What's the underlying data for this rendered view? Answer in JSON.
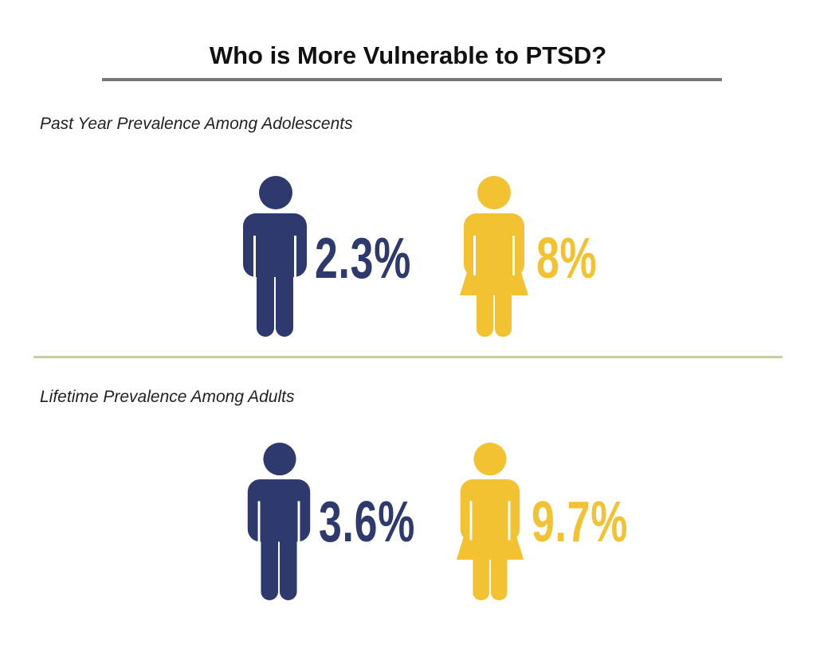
{
  "title": "Who is More Vulnerable to PTSD?",
  "colors": {
    "male": "#2e3a6e",
    "female": "#f2c232",
    "title_rule": "#777777",
    "divider": "#c5cd9c"
  },
  "chart_data": {
    "type": "pictograph",
    "title": "Who is More Vulnerable to PTSD?",
    "panels": [
      {
        "subtitle": "Past Year Prevalence Among Adolescents",
        "items": [
          {
            "icon": "male-figure-icon",
            "value": 2.3,
            "label": "2.3%"
          },
          {
            "icon": "female-figure-icon",
            "value": 8,
            "label": "8%"
          }
        ]
      },
      {
        "subtitle": "Lifetime Prevalence Among Adults",
        "items": [
          {
            "icon": "male-figure-icon",
            "value": 3.6,
            "label": "3.6%"
          },
          {
            "icon": "female-figure-icon",
            "value": 9.7,
            "label": "9.7%"
          }
        ]
      }
    ]
  }
}
